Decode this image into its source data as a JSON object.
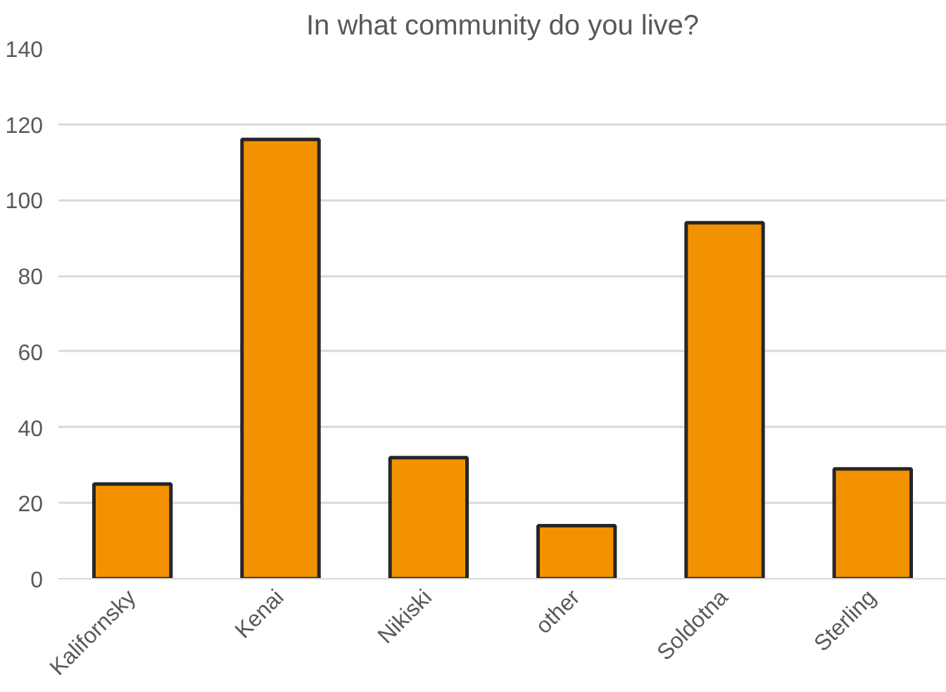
{
  "chart_data": {
    "type": "bar",
    "title": "In what community do you live?",
    "categories": [
      "Kalifornsky",
      "Kenai",
      "Nikiski",
      "other",
      "Soldotna",
      "Sterling"
    ],
    "values": [
      25,
      116,
      32,
      14,
      94,
      29
    ],
    "color": "#f39200",
    "ylim": [
      0,
      140
    ],
    "yticks": [
      0,
      20,
      40,
      60,
      80,
      100,
      120,
      140
    ],
    "grid": "y"
  }
}
